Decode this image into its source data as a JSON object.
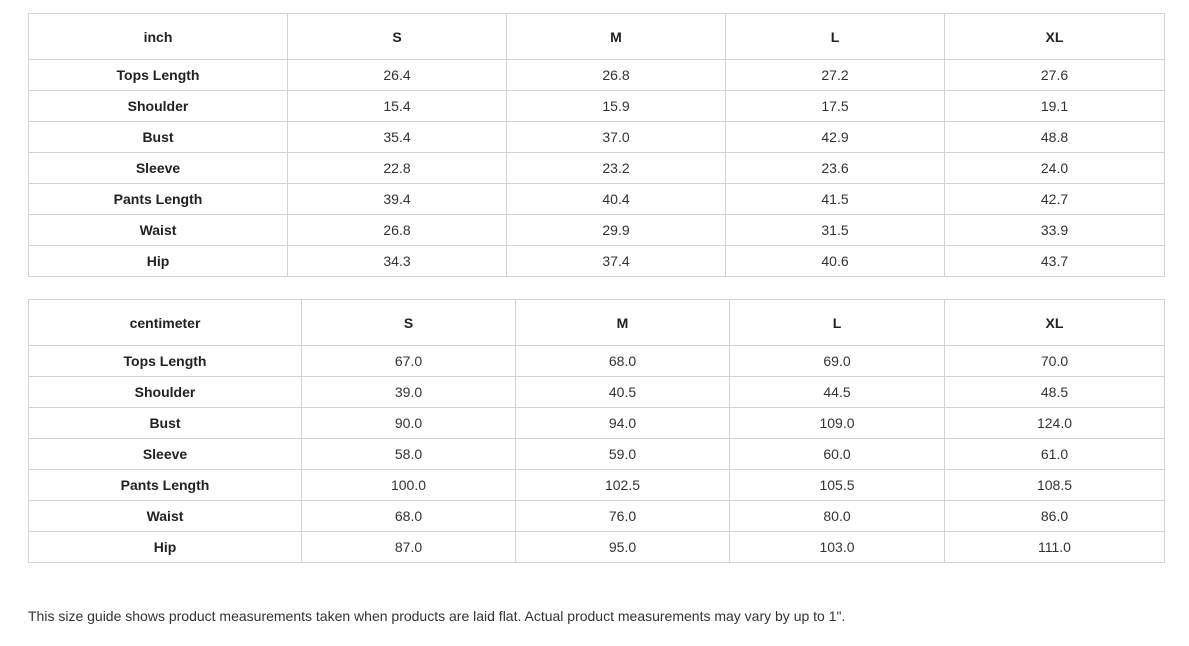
{
  "tables": [
    {
      "unit": "inch",
      "sizes": [
        "S",
        "M",
        "L",
        "XL"
      ],
      "rows": [
        {
          "label": "Tops Length",
          "values": [
            "26.4",
            "26.8",
            "27.2",
            "27.6"
          ]
        },
        {
          "label": "Shoulder",
          "values": [
            "15.4",
            "15.9",
            "17.5",
            "19.1"
          ]
        },
        {
          "label": "Bust",
          "values": [
            "35.4",
            "37.0",
            "42.9",
            "48.8"
          ]
        },
        {
          "label": "Sleeve",
          "values": [
            "22.8",
            "23.2",
            "23.6",
            "24.0"
          ]
        },
        {
          "label": "Pants Length",
          "values": [
            "39.4",
            "40.4",
            "41.5",
            "42.7"
          ]
        },
        {
          "label": "Waist",
          "values": [
            "26.8",
            "29.9",
            "31.5",
            "33.9"
          ]
        },
        {
          "label": "Hip",
          "values": [
            "34.3",
            "37.4",
            "40.6",
            "43.7"
          ]
        }
      ]
    },
    {
      "unit": "centimeter",
      "sizes": [
        "S",
        "M",
        "L",
        "XL"
      ],
      "rows": [
        {
          "label": "Tops Length",
          "values": [
            "67.0",
            "68.0",
            "69.0",
            "70.0"
          ]
        },
        {
          "label": "Shoulder",
          "values": [
            "39.0",
            "40.5",
            "44.5",
            "48.5"
          ]
        },
        {
          "label": "Bust",
          "values": [
            "90.0",
            "94.0",
            "109.0",
            "124.0"
          ]
        },
        {
          "label": "Sleeve",
          "values": [
            "58.0",
            "59.0",
            "60.0",
            "61.0"
          ]
        },
        {
          "label": "Pants Length",
          "values": [
            "100.0",
            "102.5",
            "105.5",
            "108.5"
          ]
        },
        {
          "label": "Waist",
          "values": [
            "68.0",
            "76.0",
            "80.0",
            "86.0"
          ]
        },
        {
          "label": "Hip",
          "values": [
            "87.0",
            "95.0",
            "103.0",
            "111.0"
          ]
        }
      ]
    }
  ],
  "note": "This size guide shows product measurements taken when products are laid flat. Actual product measurements may vary by up to 1\"."
}
